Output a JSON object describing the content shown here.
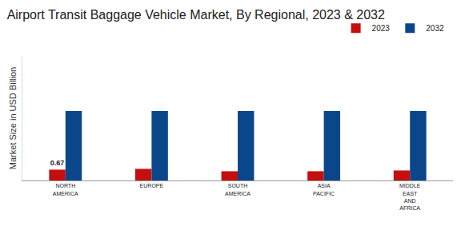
{
  "chart_data": {
    "type": "bar",
    "title": "Airport Transit Baggage Vehicle Market, By Regional, 2023 & 2032",
    "y_label": "Market Size in USD Billion",
    "categories": [
      "NORTH AMERICA",
      "EUROPE",
      "SOUTH AMERICA",
      "ASIA PACIFIC",
      "MIDDLE EAST AND AFRICA"
    ],
    "series": [
      {
        "name": "2023",
        "color": "#c40f0f",
        "values": [
          0.67,
          0.72,
          0.57,
          0.57,
          0.62
        ],
        "value_labels": [
          "0.67",
          null,
          null,
          null,
          null
        ]
      },
      {
        "name": "2032",
        "color": "#0a478a",
        "values": [
          4.3,
          4.3,
          4.3,
          4.3,
          4.3
        ]
      }
    ],
    "ylim": [
      0,
      7.7
    ],
    "tick_labels": "x",
    "grid": false,
    "legend": "top right",
    "data_labels": true
  }
}
